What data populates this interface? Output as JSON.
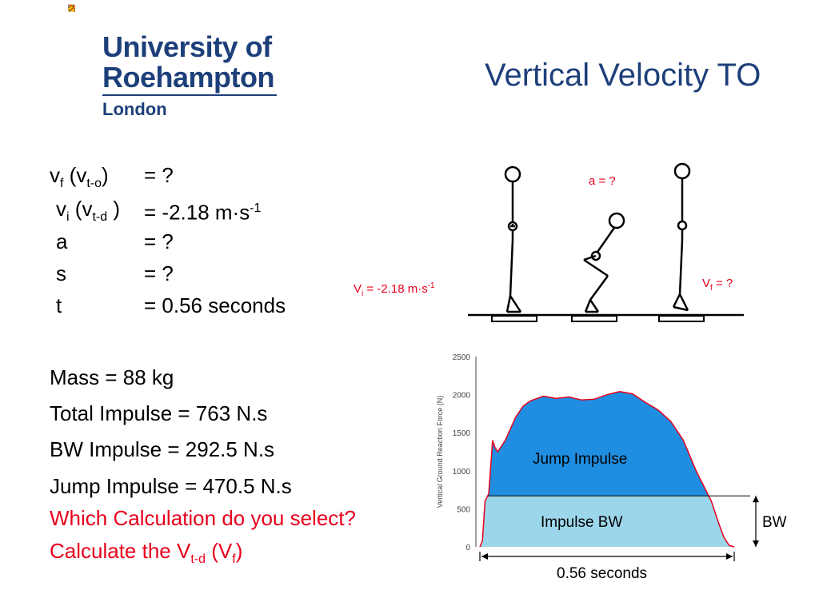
{
  "logo": {
    "line1": "University of",
    "line2": "Roehampton",
    "line3": "London"
  },
  "title": "Vertical Velocity TO",
  "equations": [
    {
      "sym": "v",
      "sub": "f",
      "paren_sym": "v",
      "paren_sub": "t-o",
      "value": "= ?",
      "sup": ""
    },
    {
      "sym": "v",
      "sub": "i",
      "paren_sym": "v",
      "paren_sub": "t-d",
      "value": "= -2.18 m·s",
      "sup": "-1"
    },
    {
      "sym": "a",
      "sub": "",
      "paren_sym": "",
      "paren_sub": "",
      "value": "= ?",
      "sup": ""
    },
    {
      "sym": "s",
      "sub": "",
      "paren_sym": "",
      "paren_sub": "",
      "value": "= ?",
      "sup": ""
    },
    {
      "sym": "t",
      "sub": "",
      "paren_sym": "",
      "paren_sub": "",
      "value": "= 0.56 seconds",
      "sup": ""
    }
  ],
  "facts": [
    "Mass = 88 kg",
    "Total Impulse = 763 N.s",
    "BW Impulse = 292.5 N.s",
    "Jump Impulse = 470.5 N.s"
  ],
  "questions": {
    "q1": "Which Calculation do you select?",
    "q2_prefix": "Calculate the V",
    "q2_sub": "t-d",
    "q2_paren_open": " (V",
    "q2_paren_sub": "f",
    "q2_close": ")"
  },
  "figure": {
    "a_label": "a = ?",
    "vi_prefix": "V",
    "vi_sub": "i",
    "vi_value": " = -2.18 m·s",
    "vi_sup": "-1",
    "vf_prefix": "V",
    "vf_sub": "f",
    "vf_value": " = ?"
  },
  "chart_data": {
    "type": "area",
    "ylabel": "Vertical Ground Reaction Force (N)",
    "yticks": [
      "0",
      "500",
      "1000",
      "1500",
      "2000",
      "2500"
    ],
    "ylim": [
      0,
      2500
    ],
    "bw_level": 670,
    "x_norm": [
      0.0,
      0.01,
      0.02,
      0.035,
      0.05,
      0.06,
      0.07,
      0.09,
      0.1,
      0.12,
      0.14,
      0.17,
      0.2,
      0.25,
      0.3,
      0.35,
      0.4,
      0.45,
      0.5,
      0.55,
      0.6,
      0.65,
      0.7,
      0.75,
      0.8,
      0.85,
      0.88,
      0.91,
      0.94,
      0.96,
      0.98,
      1.0
    ],
    "force": [
      0,
      80,
      600,
      700,
      1400,
      1300,
      1250,
      1350,
      1400,
      1550,
      1700,
      1850,
      1920,
      1980,
      1950,
      1970,
      1930,
      1940,
      2000,
      2040,
      2010,
      1900,
      1800,
      1650,
      1400,
      1000,
      800,
      600,
      300,
      120,
      20,
      0
    ],
    "annotations": {
      "jump_impulse": "Jump Impulse",
      "impulse_bw": "Impulse BW",
      "bw": "BW",
      "duration": "0.56 seconds"
    },
    "colors": {
      "jump": "#1f8de0",
      "bw": "#9cd6ea",
      "outline": "#e8001c"
    }
  }
}
